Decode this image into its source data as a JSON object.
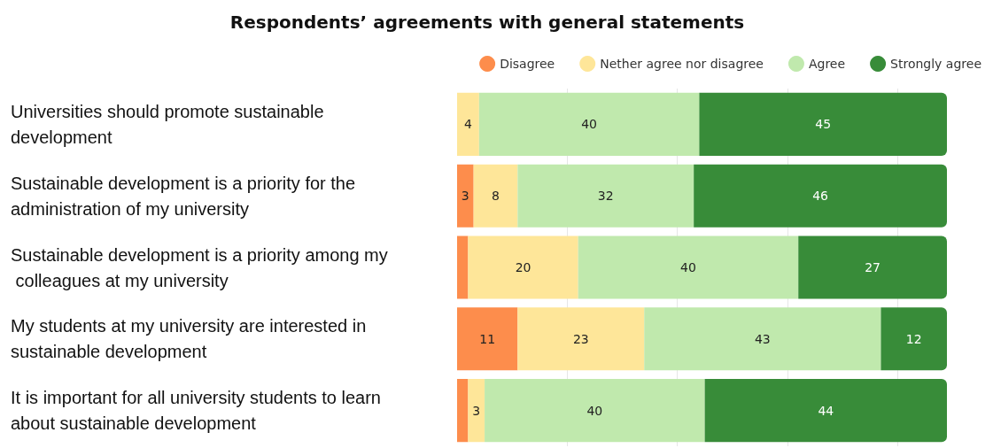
{
  "chart_data": {
    "type": "bar",
    "orientation": "horizontal",
    "stacked": true,
    "title": "Respondents’ agreements with general statements",
    "categories": [
      "Universities should promote sustainable development",
      "Sustainable development is a priority for the administration of my university",
      "Sustainable development is a priority among my colleagues at my university",
      "My students at my university are interested in sustainable development",
      "It is important for all university students to learn about sustainable development"
    ],
    "series": [
      {
        "name": "Disagree",
        "color": "#fd8d4c",
        "values": [
          null,
          3,
          2,
          11,
          2
        ],
        "value_labels": [
          null,
          "3",
          null,
          "11",
          null
        ]
      },
      {
        "name": "Nether agree nor disagree",
        "color": "#fee699",
        "values": [
          4,
          8,
          20,
          23,
          3
        ],
        "value_labels": [
          "4",
          "8",
          "20",
          "23",
          "3"
        ]
      },
      {
        "name": "Agree",
        "color": "#c0e9ad",
        "values": [
          40,
          32,
          40,
          43,
          40
        ],
        "value_labels": [
          "40",
          "32",
          "40",
          "43",
          "40"
        ]
      },
      {
        "name": "Strongly agree",
        "color": "#388c39",
        "values": [
          45,
          46,
          27,
          12,
          44
        ],
        "value_labels": [
          "45",
          "46",
          "27",
          "12",
          "44"
        ]
      }
    ],
    "xlim": [
      0,
      89
    ],
    "xticks": [
      {
        "value": 20,
        "label": null
      },
      {
        "value": 40,
        "label": null
      },
      {
        "value": 60,
        "label": null
      },
      {
        "value": 80,
        "label": null
      }
    ],
    "grid": "x",
    "legend": "top right",
    "tick_labels": "y"
  }
}
